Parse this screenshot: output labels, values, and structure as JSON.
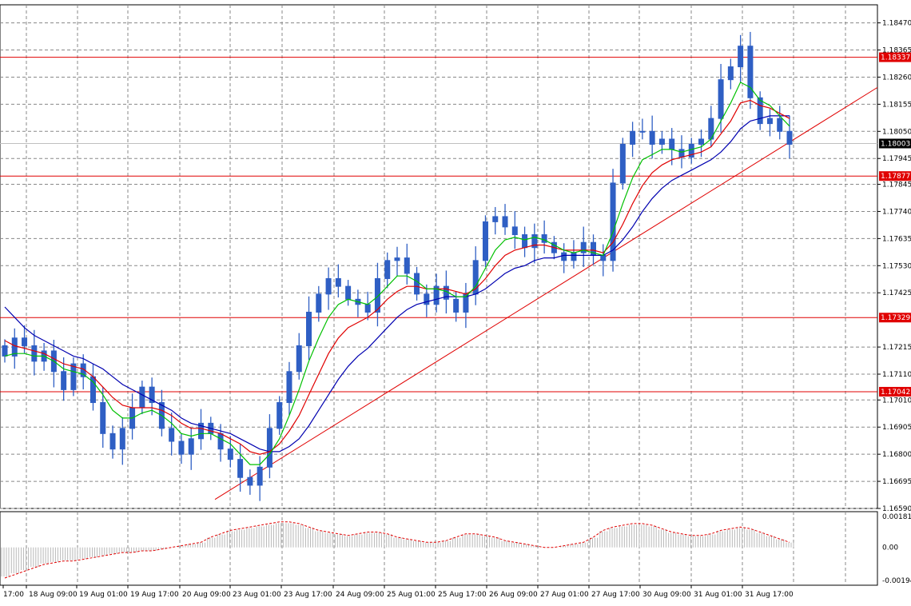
{
  "chart_data": {
    "type": "candlestick",
    "symbol_hint": "EURUSD",
    "colors": {
      "candle": "#2f5fc4",
      "ma_fast": "#00c000",
      "ma_mid": "#e00000",
      "ma_slow": "#0000b0",
      "level_line": "#e00000",
      "trend_line": "#e00000",
      "grid": "#888888",
      "osc_hist": "#b8b8b8",
      "osc_signal": "#e00000",
      "price_box": "#e00000",
      "current_box": "#000000"
    },
    "price_axis": {
      "range": [
        1.1659,
        1.1854
      ],
      "ticks": [
        "1.18470",
        "1.18365",
        "1.18260",
        "1.18155",
        "1.18050",
        "1.17945",
        "1.17845",
        "1.17740",
        "1.17635",
        "1.17530",
        "1.17425",
        "1.17215",
        "1.17110",
        "1.17010",
        "1.16905",
        "1.16800",
        "1.16695",
        "1.16590"
      ]
    },
    "time_axis": {
      "labels": [
        "17:00",
        "18 Aug 09:00",
        "19 Aug 01:00",
        "19 Aug 17:00",
        "20 Aug 09:00",
        "23 Aug 01:00",
        "23 Aug 17:00",
        "24 Aug 09:00",
        "25 Aug 01:00",
        "25 Aug 17:00",
        "26 Aug 09:00",
        "27 Aug 01:00",
        "27 Aug 17:00",
        "30 Aug 09:00",
        "31 Aug 01:00",
        "31 Aug 17:00"
      ]
    },
    "horizontal_levels": [
      {
        "label": "1.18337",
        "value": 1.18337
      },
      {
        "label": "1.17877",
        "value": 1.17877
      },
      {
        "label": "1.17329",
        "value": 1.17329
      },
      {
        "label": "1.17042",
        "value": 1.17042
      }
    ],
    "current_price": {
      "label": "1.18003",
      "value": 1.18003
    },
    "trendline": {
      "from_bar": 0.245,
      "from_value": 1.16625,
      "to_bar": 1.0,
      "to_value": 1.1822
    },
    "candles_close": [
      1.1718,
      1.1725,
      1.1722,
      1.1716,
      1.172,
      1.1712,
      1.1705,
      1.1715,
      1.171,
      1.17,
      1.1688,
      1.1682,
      1.169,
      1.1698,
      1.1706,
      1.17,
      1.169,
      1.1685,
      1.168,
      1.1686,
      1.1692,
      1.1688,
      1.1682,
      1.1678,
      1.1671,
      1.1668,
      1.1675,
      1.169,
      1.17,
      1.1712,
      1.1722,
      1.1735,
      1.1742,
      1.1748,
      1.1745,
      1.174,
      1.1738,
      1.1735,
      1.1748,
      1.1755,
      1.1756,
      1.175,
      1.1742,
      1.1738,
      1.1745,
      1.174,
      1.1735,
      1.1742,
      1.1755,
      1.177,
      1.1772,
      1.1768,
      1.1765,
      1.176,
      1.1765,
      1.1762,
      1.1758,
      1.1755,
      1.1758,
      1.1762,
      1.1757,
      1.1755,
      1.1785,
      1.18,
      1.1805,
      1.1805,
      1.18,
      1.1802,
      1.1798,
      1.1795,
      1.18,
      1.1802,
      1.181,
      1.1825,
      1.183,
      1.1838,
      1.1818,
      1.1808,
      1.181,
      1.1805,
      1.18
    ],
    "ma_fast": [
      1.1718,
      1.1719,
      1.1719,
      1.1718,
      1.1718,
      1.1716,
      1.1713,
      1.1712,
      1.1711,
      1.1708,
      1.1703,
      1.1697,
      1.1694,
      1.1694,
      1.1696,
      1.1697,
      1.1695,
      1.1692,
      1.1688,
      1.1687,
      1.1688,
      1.1688,
      1.1686,
      1.1684,
      1.168,
      1.1676,
      1.1676,
      1.168,
      1.1686,
      1.1695,
      1.1705,
      1.1716,
      1.1725,
      1.1733,
      1.1738,
      1.174,
      1.1739,
      1.1738,
      1.1741,
      1.1745,
      1.1749,
      1.1749,
      1.1747,
      1.1744,
      1.1744,
      1.1743,
      1.1741,
      1.1741,
      1.1745,
      1.1752,
      1.1759,
      1.1763,
      1.1764,
      1.1763,
      1.1764,
      1.1763,
      1.1761,
      1.1759,
      1.1758,
      1.1759,
      1.1758,
      1.1757,
      1.1766,
      1.1777,
      1.1787,
      1.1794,
      1.1796,
      1.1798,
      1.1798,
      1.1797,
      1.1798,
      1.1799,
      1.1802,
      1.1809,
      1.1816,
      1.1824,
      1.1822,
      1.1817,
      1.1815,
      1.1811,
      1.1807
    ],
    "ma_mid": [
      1.1724,
      1.1722,
      1.1721,
      1.172,
      1.1719,
      1.1717,
      1.1715,
      1.1714,
      1.1713,
      1.171,
      1.1706,
      1.1702,
      1.1699,
      1.1698,
      1.1698,
      1.1698,
      1.1697,
      1.1695,
      1.1692,
      1.169,
      1.169,
      1.1689,
      1.1688,
      1.1686,
      1.1684,
      1.1681,
      1.168,
      1.1681,
      1.1684,
      1.1689,
      1.1695,
      1.1703,
      1.1711,
      1.1719,
      1.1725,
      1.1729,
      1.1731,
      1.1733,
      1.1736,
      1.174,
      1.1743,
      1.1745,
      1.1745,
      1.1744,
      1.1744,
      1.1744,
      1.1743,
      1.1742,
      1.1744,
      1.1748,
      1.1753,
      1.1757,
      1.1759,
      1.176,
      1.1761,
      1.1761,
      1.176,
      1.1759,
      1.1759,
      1.1759,
      1.1759,
      1.1758,
      1.1762,
      1.1769,
      1.1777,
      1.1784,
      1.1789,
      1.1792,
      1.1794,
      1.1795,
      1.1796,
      1.1797,
      1.1799,
      1.1804,
      1.1809,
      1.1816,
      1.1817,
      1.1815,
      1.1814,
      1.1812,
      1.181
    ],
    "ma_slow": [
      1.1737,
      1.1733,
      1.1729,
      1.1726,
      1.1724,
      1.1722,
      1.172,
      1.1718,
      1.1717,
      1.1715,
      1.1713,
      1.171,
      1.1707,
      1.1705,
      1.1703,
      1.1701,
      1.1699,
      1.1697,
      1.1694,
      1.1692,
      1.1691,
      1.169,
      1.1689,
      1.1688,
      1.1686,
      1.1684,
      1.1682,
      1.1681,
      1.1681,
      1.1683,
      1.1686,
      1.1691,
      1.1697,
      1.1703,
      1.1709,
      1.1714,
      1.1718,
      1.1721,
      1.1725,
      1.1729,
      1.1733,
      1.1736,
      1.1738,
      1.1739,
      1.174,
      1.1741,
      1.1741,
      1.1741,
      1.1742,
      1.1744,
      1.1747,
      1.175,
      1.1752,
      1.1753,
      1.1755,
      1.1756,
      1.1756,
      1.1757,
      1.1757,
      1.1757,
      1.1757,
      1.1757,
      1.1759,
      1.1763,
      1.1768,
      1.1774,
      1.1779,
      1.1783,
      1.1786,
      1.1788,
      1.179,
      1.1792,
      1.1794,
      1.1797,
      1.1801,
      1.1806,
      1.1809,
      1.181,
      1.1811,
      1.1811,
      1.1811
    ],
    "oscillator": {
      "axis_ticks": [
        "0.001818",
        "0.00",
        "-0.00194"
      ],
      "range": [
        -0.00194,
        0.001818
      ],
      "signal": [
        -0.0018,
        -0.0016,
        -0.0014,
        -0.0012,
        -0.001,
        -0.0009,
        -0.0008,
        -0.0008,
        -0.0007,
        -0.0006,
        -0.0005,
        -0.0004,
        -0.0003,
        -0.0003,
        -0.0002,
        -0.0002,
        -0.0001,
        0.0,
        0.0001,
        0.0002,
        0.0003,
        0.0006,
        0.0008,
        0.001,
        0.0011,
        0.0012,
        0.0013,
        0.0014,
        0.0015,
        0.0015,
        0.0014,
        0.0012,
        0.001,
        0.0009,
        0.0008,
        0.0007,
        0.0008,
        0.0009,
        0.0009,
        0.0008,
        0.0006,
        0.0005,
        0.0004,
        0.0003,
        0.0003,
        0.0004,
        0.0006,
        0.0008,
        0.0008,
        0.0007,
        0.0006,
        0.0004,
        0.0003,
        0.0002,
        0.0001,
        0.0,
        0.0,
        0.0001,
        0.0002,
        0.0003,
        0.0006,
        0.001,
        0.0012,
        0.0013,
        0.0014,
        0.0014,
        0.0013,
        0.0011,
        0.0009,
        0.0008,
        0.0007,
        0.0007,
        0.0008,
        0.001,
        0.0011,
        0.0012,
        0.0011,
        0.0009,
        0.0007,
        0.0005,
        0.0003
      ]
    }
  }
}
